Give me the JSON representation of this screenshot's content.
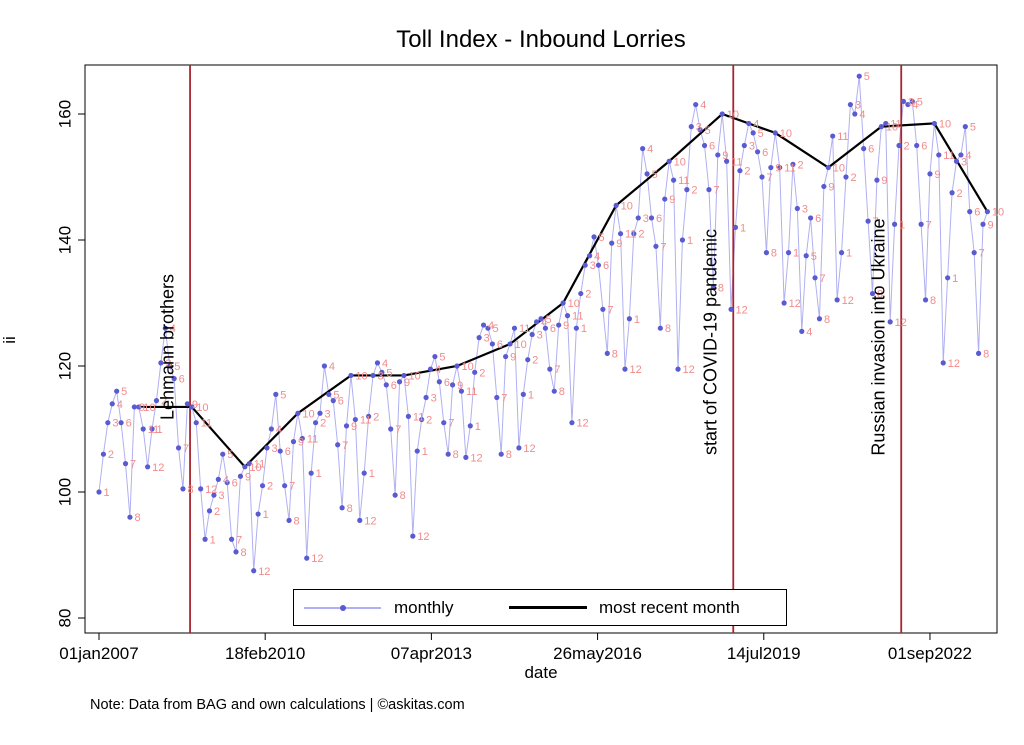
{
  "title": "Toll Index - Inbound Lorries",
  "note": "Note: Data from BAG and own calculations | ©askitas.com",
  "legend": {
    "monthly_label": "monthly",
    "recent_label": "most recent month"
  },
  "axes": {
    "x_label": "date",
    "y_label": "ii"
  },
  "colors": {
    "monthly_line": "#b0b0f2",
    "monthly_marker": "#5a5ad2",
    "month_number_label": "#f28b8b",
    "recent_month_line": "#000000",
    "event_line": "#a8242f",
    "axis_line": "#000000",
    "background": "#ffffff"
  },
  "chart_data": {
    "type": "line",
    "title": "Toll Index - Inbound Lorries",
    "xlabel": "date",
    "ylabel": "ii",
    "grid": false,
    "legend_position": "bottom-center",
    "y_ticks": [
      80,
      100,
      120,
      140,
      160
    ],
    "y_axis_range": [
      77.5,
      167.8
    ],
    "x_ticks": [
      {
        "label": "01jan2007",
        "month_index": 0
      },
      {
        "label": "18feb2010",
        "month_index": 37.6
      },
      {
        "label": "07apr2013",
        "month_index": 75.2
      },
      {
        "label": "26may2016",
        "month_index": 112.8
      },
      {
        "label": "14jul2019",
        "month_index": 150.4
      },
      {
        "label": "01sep2022",
        "month_index": 188.0
      }
    ],
    "events": [
      {
        "label": "Lehmann brothers",
        "month_index": 20.6
      },
      {
        "label": "start of COVID-19 pandemic",
        "month_index": 143.5
      },
      {
        "label": "Russian invasion into Ukraine",
        "month_index": 181.5
      }
    ],
    "series": [
      {
        "name": "monthly",
        "style": "thin light-blue line, blue dot markers, each point labeled with its month number in light red",
        "start_year": 2007,
        "start_month": 1,
        "values_by_year": [
          {
            "year": 2007,
            "values": [
              100,
              106,
              111,
              114,
              116,
              111,
              104.5,
              96,
              113.5,
              113.5,
              110,
              104
            ]
          },
          {
            "year": 2008,
            "values": [
              110,
              114.5,
              120.5,
              126,
              120,
              118,
              107,
              100.5,
              114,
              113.5,
              111,
              100.5
            ]
          },
          {
            "year": 2009,
            "values": [
              92.5,
              97,
              99.5,
              102,
              106,
              101.5,
              92.5,
              90.5,
              102.5,
              104,
              104.5,
              87.5
            ]
          },
          {
            "year": 2010,
            "values": [
              96.5,
              101,
              107,
              110,
              115.5,
              106.5,
              101,
              95.5,
              108,
              112.5,
              108.5,
              89.5
            ]
          },
          {
            "year": 2011,
            "values": [
              103,
              111,
              112.5,
              120,
              115.5,
              114.5,
              107.5,
              97.5,
              110.5,
              118.5,
              111.5,
              95.5
            ]
          },
          {
            "year": 2012,
            "values": [
              103,
              112,
              118.5,
              120.5,
              119,
              117,
              110,
              99.5,
              117.5,
              118.5,
              112,
              93
            ]
          },
          {
            "year": 2013,
            "values": [
              106.5,
              111.5,
              115,
              119.5,
              121.5,
              117.5,
              111,
              106,
              117,
              120,
              116,
              105.5
            ]
          },
          {
            "year": 2014,
            "values": [
              110.5,
              119,
              124.5,
              126.5,
              126,
              123.5,
              115,
              106,
              121.5,
              123.5,
              126,
              107
            ]
          },
          {
            "year": 2015,
            "values": [
              115.5,
              121,
              125,
              127,
              127.5,
              126,
              119.5,
              116,
              126.5,
              130,
              128,
              111
            ]
          },
          {
            "year": 2016,
            "values": [
              126,
              131.5,
              136,
              137.5,
              140.5,
              136,
              129,
              122,
              139.5,
              145.5,
              141,
              119.5
            ]
          },
          {
            "year": 2017,
            "values": [
              127.5,
              141,
              143.5,
              154.5,
              150.5,
              143.5,
              139,
              126,
              146.5,
              152.5,
              149.5,
              119.5
            ]
          },
          {
            "year": 2018,
            "values": [
              140,
              148,
              158,
              161.5,
              157.5,
              155,
              148,
              132.5,
              153.5,
              160,
              152.5,
              129
            ]
          },
          {
            "year": 2019,
            "values": [
              142,
              151,
              155,
              158.5,
              157,
              154,
              150,
              138,
              151.5,
              157,
              151.5,
              130
            ]
          },
          {
            "year": 2020,
            "values": [
              138,
              152,
              145,
              125.5,
              137.5,
              143.5,
              134,
              127.5,
              148.5,
              151.5,
              156.5,
              130.5
            ]
          },
          {
            "year": 2021,
            "values": [
              138,
              150,
              161.5,
              160,
              166,
              154.5,
              143,
              131.5,
              149.5,
              158,
              158.5,
              127
            ]
          },
          {
            "year": 2022,
            "values": [
              142.5,
              155,
              162,
              161.5,
              162,
              155,
              142.5,
              130.5,
              150.5,
              158.5,
              153.5,
              120.5
            ]
          },
          {
            "year": 2023,
            "values": [
              134,
              147.5,
              152.5,
              153.5,
              158,
              144.5,
              138,
              122,
              142.5,
              144.5
            ]
          }
        ]
      },
      {
        "name": "most recent month",
        "style": "thick black line connecting the October value of each year",
        "month": 10,
        "years": [
          2007,
          2008,
          2009,
          2010,
          2011,
          2012,
          2013,
          2014,
          2015,
          2016,
          2017,
          2018,
          2019,
          2020,
          2021,
          2022,
          2023
        ],
        "values": [
          113.5,
          113.5,
          104,
          112.5,
          118.5,
          118.5,
          120,
          123.5,
          130,
          145.5,
          152.5,
          160,
          157,
          151.5,
          158,
          158.5,
          144.5
        ]
      }
    ]
  }
}
